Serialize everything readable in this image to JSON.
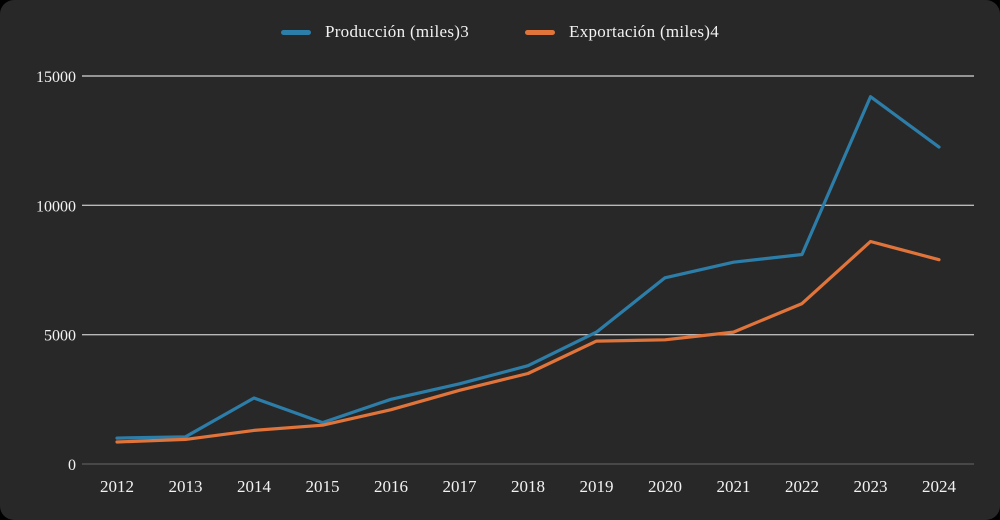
{
  "page": {
    "background": "#000000",
    "card_background": "#282828"
  },
  "legend": {
    "items": [
      {
        "label": "Producción (miles)3",
        "color": "#2d7da9"
      },
      {
        "label": "Exportación (miles)4",
        "color": "#e0743a"
      }
    ]
  },
  "chart_data": {
    "type": "line",
    "title": "",
    "xlabel": "",
    "ylabel": "",
    "categories": [
      "2012",
      "2013",
      "2014",
      "2015",
      "2016",
      "2017",
      "2018",
      "2019",
      "2020",
      "2021",
      "2022",
      "2023",
      "2024"
    ],
    "series": [
      {
        "name": "Producción (miles)3",
        "color": "#2d7da9",
        "values": [
          1000,
          1050,
          2550,
          1600,
          2500,
          3100,
          3800,
          5100,
          7200,
          7800,
          8100,
          14200,
          12250
        ]
      },
      {
        "name": "Exportación (miles)4",
        "color": "#e0743a",
        "values": [
          850,
          950,
          1300,
          1500,
          2100,
          2850,
          3500,
          4750,
          4800,
          5100,
          6200,
          8600,
          7900
        ]
      }
    ],
    "ylim": [
      0,
      15000
    ],
    "yticks": [
      0,
      5000,
      10000,
      15000
    ],
    "grid": "horizontal",
    "legend_position": "top",
    "axis_text_color": "#f2f2f2",
    "gridline_color": "#b9b9b9",
    "zero_line_color": "#525252"
  }
}
